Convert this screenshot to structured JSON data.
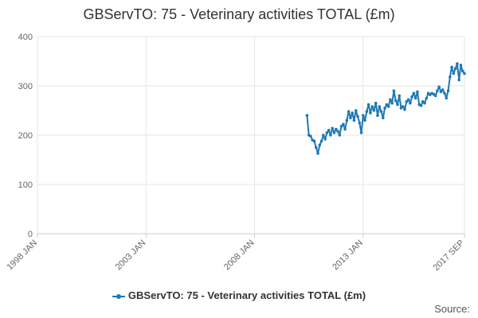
{
  "chart_data": {
    "type": "line",
    "title": "GBServTO: 75 - Veterinary activities TOTAL (£m)",
    "xlabel": "",
    "ylabel": "",
    "ylim": [
      0,
      400
    ],
    "yticks": [
      0,
      100,
      200,
      300,
      400
    ],
    "xlim": [
      "1998-01",
      "2017-09"
    ],
    "xticks": [
      "1998 JAN",
      "2003 JAN",
      "2008 JAN",
      "2013 JAN",
      "2017 SEP"
    ],
    "grid": true,
    "legend_position": "bottom",
    "series": [
      {
        "name": "GBServTO: 75 - Veterinary activities TOTAL (£m)",
        "color": "#1f78b4",
        "points": [
          [
            "2010-06",
            240
          ],
          [
            "2010-07",
            200
          ],
          [
            "2010-08",
            198
          ],
          [
            "2010-09",
            190
          ],
          [
            "2010-10",
            188
          ],
          [
            "2010-11",
            175
          ],
          [
            "2010-12",
            163
          ],
          [
            "2011-01",
            180
          ],
          [
            "2011-02",
            188
          ],
          [
            "2011-03",
            200
          ],
          [
            "2011-04",
            192
          ],
          [
            "2011-05",
            205
          ],
          [
            "2011-06",
            210
          ],
          [
            "2011-07",
            200
          ],
          [
            "2011-08",
            214
          ],
          [
            "2011-09",
            205
          ],
          [
            "2011-10",
            212
          ],
          [
            "2011-11",
            208
          ],
          [
            "2011-12",
            200
          ],
          [
            "2012-01",
            218
          ],
          [
            "2012-02",
            222
          ],
          [
            "2012-03",
            212
          ],
          [
            "2012-04",
            230
          ],
          [
            "2012-05",
            248
          ],
          [
            "2012-06",
            235
          ],
          [
            "2012-07",
            245
          ],
          [
            "2012-08",
            230
          ],
          [
            "2012-09",
            250
          ],
          [
            "2012-10",
            238
          ],
          [
            "2012-11",
            225
          ],
          [
            "2012-12",
            205
          ],
          [
            "2013-01",
            240
          ],
          [
            "2013-02",
            230
          ],
          [
            "2013-03",
            248
          ],
          [
            "2013-04",
            262
          ],
          [
            "2013-05",
            245
          ],
          [
            "2013-06",
            258
          ],
          [
            "2013-07",
            250
          ],
          [
            "2013-08",
            265
          ],
          [
            "2013-09",
            240
          ],
          [
            "2013-10",
            258
          ],
          [
            "2013-11",
            248
          ],
          [
            "2013-12",
            235
          ],
          [
            "2014-01",
            255
          ],
          [
            "2014-02",
            262
          ],
          [
            "2014-03",
            258
          ],
          [
            "2014-04",
            272
          ],
          [
            "2014-05",
            265
          ],
          [
            "2014-06",
            290
          ],
          [
            "2014-07",
            270
          ],
          [
            "2014-08",
            262
          ],
          [
            "2014-09",
            280
          ],
          [
            "2014-10",
            255
          ],
          [
            "2014-11",
            258
          ],
          [
            "2014-12",
            252
          ],
          [
            "2015-01",
            268
          ],
          [
            "2015-02",
            272
          ],
          [
            "2015-03",
            265
          ],
          [
            "2015-04",
            278
          ],
          [
            "2015-05",
            285
          ],
          [
            "2015-06",
            275
          ],
          [
            "2015-07",
            288
          ],
          [
            "2015-08",
            262
          ],
          [
            "2015-09",
            260
          ],
          [
            "2015-10",
            268
          ],
          [
            "2015-11",
            265
          ],
          [
            "2015-12",
            275
          ],
          [
            "2016-01",
            285
          ],
          [
            "2016-02",
            282
          ],
          [
            "2016-03",
            285
          ],
          [
            "2016-04",
            283
          ],
          [
            "2016-05",
            280
          ],
          [
            "2016-06",
            290
          ],
          [
            "2016-07",
            298
          ],
          [
            "2016-08",
            288
          ],
          [
            "2016-09",
            292
          ],
          [
            "2016-10",
            285
          ],
          [
            "2016-11",
            275
          ],
          [
            "2016-12",
            290
          ],
          [
            "2017-01",
            318
          ],
          [
            "2017-02",
            338
          ],
          [
            "2017-03",
            325
          ],
          [
            "2017-04",
            335
          ],
          [
            "2017-05",
            345
          ],
          [
            "2017-06",
            312
          ],
          [
            "2017-07",
            342
          ],
          [
            "2017-08",
            330
          ],
          [
            "2017-09",
            325
          ]
        ]
      }
    ]
  },
  "legend": {
    "label": "GBServTO: 75 - Veterinary activities TOTAL (£m)"
  },
  "source": {
    "label": "Source:"
  }
}
